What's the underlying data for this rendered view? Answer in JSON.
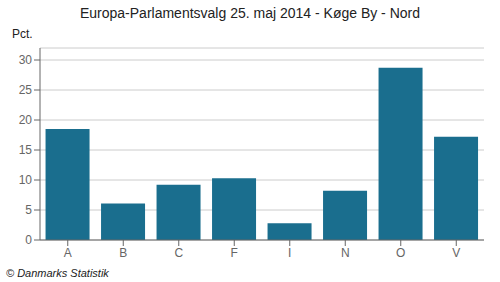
{
  "chart_data": {
    "type": "bar",
    "title": "Europa-Parlamentsvalg 25. maj 2014 - Køge By - Nord",
    "categories": [
      "A",
      "B",
      "C",
      "F",
      "I",
      "N",
      "O",
      "V"
    ],
    "values": [
      18.5,
      6.1,
      9.2,
      10.3,
      2.8,
      8.2,
      28.7,
      17.2
    ],
    "color": "#1a6e8e",
    "ylabel": "Pct.",
    "ylim": [
      0,
      32
    ],
    "yticks": [
      0,
      5,
      10,
      15,
      20,
      25,
      30
    ],
    "grid": true,
    "footer": "© Danmarks Statistik"
  }
}
